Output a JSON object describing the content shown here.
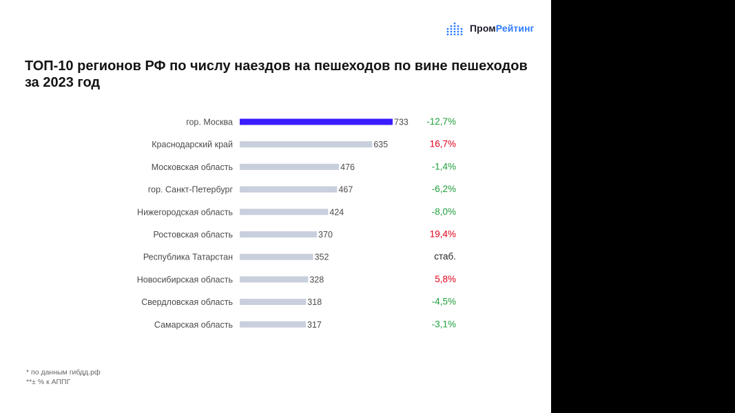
{
  "logo": {
    "text_part1": "Пром",
    "text_part2": "Рейтинг",
    "icon": "dot-matrix-bars-icon",
    "color_dark": "#1d1d2b",
    "color_accent": "#2f7bff"
  },
  "title": "ТОП-10  регионов РФ по числу наездов на пешеходов по вине пешеходов за 2023 год",
  "chart_data": {
    "type": "bar",
    "orientation": "horizontal",
    "categories": [
      "гор. Москва",
      "Краснодарский край",
      "Московская область",
      "гор. Санкт-Петербург",
      "Нижегородская область",
      "Ростовская область",
      "Республика Татарстан",
      "Новосибирская область",
      "Свердловская область",
      "Самарская область"
    ],
    "values": [
      733,
      635,
      476,
      467,
      424,
      370,
      352,
      328,
      318,
      317
    ],
    "value_labels": [
      "733",
      "635",
      "476",
      "467",
      "424",
      "370",
      "352",
      "328",
      "318",
      "317"
    ],
    "changes": [
      "-12,7%",
      "16,7%",
      "-1,4%",
      "-6,2%",
      "-8,0%",
      "19,4%",
      "стаб.",
      "5,8%",
      "-4,5%",
      "-3,1%"
    ],
    "change_directions": [
      "down",
      "up",
      "down",
      "down",
      "down",
      "up",
      "flat",
      "up",
      "down",
      "down"
    ],
    "colors": {
      "highlight_bar": "#3a1cff",
      "bar": "#c9cfdd",
      "up": "#e0001b",
      "down": "#1e9e3a",
      "flat": "#222222"
    },
    "xlim": [
      0,
      733
    ]
  },
  "footnotes": [
    "* по данным гибдд.рф",
    "**± % к АППГ"
  ]
}
